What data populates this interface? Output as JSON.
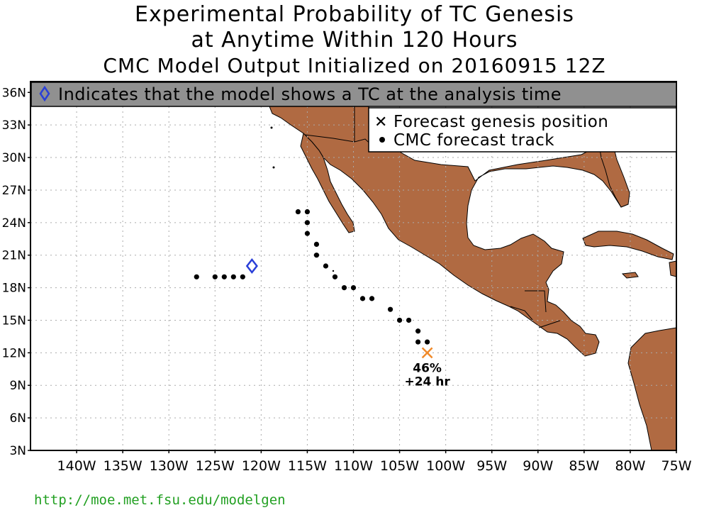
{
  "titles": {
    "line1": "Experimental Probability of TC Genesis",
    "line2": "at Anytime Within 120 Hours",
    "line3": "CMC Model Output Initialized on 20160915 12Z"
  },
  "banner": {
    "text": "Indicates that the model shows a TC at the analysis time",
    "background": "#909090",
    "icon": "diamond-icon"
  },
  "legend": {
    "genesis_label": "Forecast genesis position",
    "track_label": "CMC forecast track",
    "genesis_icon": "x-mark-icon",
    "track_icon": "dot-icon"
  },
  "colors": {
    "land": "#b06a42",
    "ocean": "#ffffff",
    "diamond": "#2a3fd8",
    "genesis": "#f08a2a",
    "url": "#22a022"
  },
  "axes": {
    "lon_labels": [
      "140W",
      "135W",
      "130W",
      "125W",
      "120W",
      "115W",
      "110W",
      "105W",
      "100W",
      "95W",
      "90W",
      "85W",
      "80W",
      "75W"
    ],
    "lat_labels": [
      "36N",
      "33N",
      "30N",
      "27N",
      "24N",
      "21N",
      "18N",
      "15N",
      "12N",
      "9N",
      "6N",
      "3N"
    ],
    "lon_values": [
      -140,
      -135,
      -130,
      -125,
      -120,
      -115,
      -110,
      -105,
      -100,
      -95,
      -90,
      -85,
      -80,
      -75
    ],
    "lat_values": [
      36,
      33,
      30,
      27,
      24,
      21,
      18,
      15,
      12,
      9,
      6,
      3
    ],
    "grid": true
  },
  "analysis_tc": {
    "lon": -121,
    "lat": 20
  },
  "genesis": {
    "lon": -102,
    "lat": 12,
    "probability": "46%",
    "lead_time": "+24 hr"
  },
  "tracks": [
    {
      "points": [
        [
          -127,
          19
        ],
        [
          -125,
          19
        ],
        [
          -124,
          19
        ],
        [
          -123,
          19
        ],
        [
          -122,
          19
        ]
      ]
    },
    {
      "points": [
        [
          -116,
          25
        ],
        [
          -115,
          25
        ],
        [
          -115,
          24
        ],
        [
          -115,
          23
        ],
        [
          -114,
          22
        ],
        [
          -114,
          21
        ],
        [
          -113,
          20
        ],
        [
          -112,
          19
        ],
        [
          -111,
          18
        ],
        [
          -110,
          18
        ],
        [
          -109,
          17
        ],
        [
          -108,
          17
        ],
        [
          -106,
          16
        ],
        [
          -105,
          15
        ],
        [
          -104,
          15
        ],
        [
          -103,
          14
        ],
        [
          -103,
          13
        ],
        [
          -102,
          13
        ]
      ]
    }
  ],
  "footer": {
    "url": "http://moe.met.fsu.edu/modelgen"
  }
}
